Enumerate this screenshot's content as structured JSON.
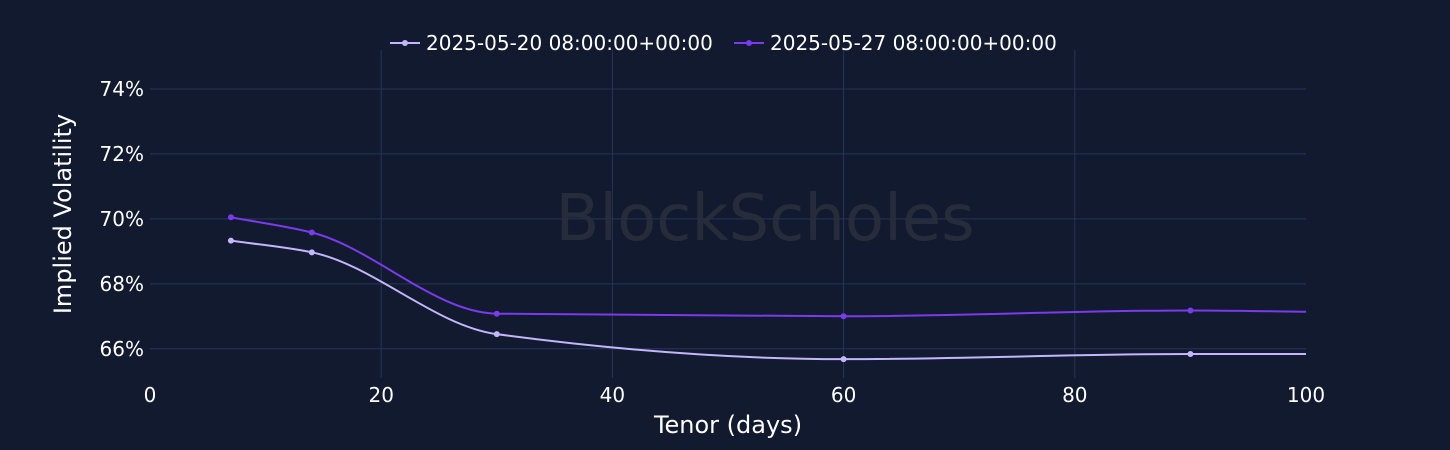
{
  "watermark": "BlockScholes",
  "colors": {
    "background": "#111a2e",
    "grid": "#27345a",
    "series1": "#c4b5fd",
    "series2": "#7c3aed",
    "text": "#ffffff"
  },
  "chart_data": {
    "type": "line",
    "xlabel": "Tenor (days)",
    "ylabel": "Implied Volatility",
    "xlim": [
      0,
      100
    ],
    "ylim": [
      65.1,
      75.2
    ],
    "x_ticks": [
      0,
      20,
      40,
      60,
      80,
      100
    ],
    "y_ticks": [
      66,
      68,
      70,
      72,
      74
    ],
    "y_tick_suffix": "%",
    "grid": true,
    "legend_position": "top-center",
    "series": [
      {
        "name": "2025-05-20 08:00:00+00:00",
        "color": "#c4b5fd",
        "x": [
          7,
          14,
          30,
          60,
          90,
          100
        ],
        "y": [
          69.33,
          68.97,
          66.45,
          65.68,
          65.84,
          65.84
        ],
        "markers_x": [
          7,
          14,
          30,
          60,
          90
        ]
      },
      {
        "name": "2025-05-27 08:00:00+00:00",
        "color": "#7c3aed",
        "x": [
          7,
          14,
          30,
          60,
          90,
          100
        ],
        "y": [
          70.05,
          69.58,
          67.08,
          67.0,
          67.18,
          67.14
        ],
        "markers_x": [
          7,
          14,
          30,
          60,
          90
        ]
      }
    ]
  }
}
